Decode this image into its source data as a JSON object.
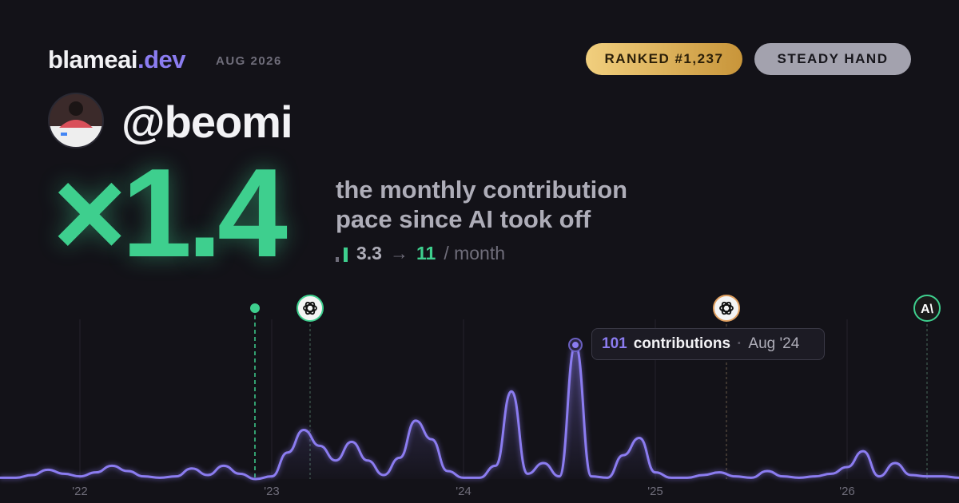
{
  "header": {
    "brand": "blameai",
    "brand_tld": ".dev",
    "period": "AUG 2026",
    "badges": [
      "RANKED #1,237",
      "STEADY HAND"
    ]
  },
  "profile": {
    "handle": "@beomi"
  },
  "hero": {
    "multiplier": "×1.4",
    "description_line1": "the monthly contribution",
    "description_line2": "pace since AI took off",
    "before": "3.3",
    "arrow": "→",
    "after": "11",
    "unit": "/ month"
  },
  "markers": {
    "anthropic_label": "A\\"
  },
  "chart_data": {
    "type": "line",
    "color": "#8b7cf0",
    "categories": [
      null,
      null,
      null,
      null,
      null,
      "'22",
      null,
      null,
      null,
      null,
      null,
      null,
      null,
      null,
      null,
      null,
      null,
      "'23",
      null,
      null,
      null,
      null,
      null,
      null,
      null,
      null,
      null,
      null,
      null,
      "'24",
      null,
      null,
      null,
      null,
      null,
      null,
      null,
      null,
      null,
      null,
      null,
      "'25",
      null,
      null,
      null,
      null,
      null,
      null,
      null,
      null,
      null,
      null,
      null,
      "'26",
      null,
      null,
      null,
      null,
      null,
      null,
      null
    ],
    "values": [
      1,
      1,
      3,
      7,
      4,
      2,
      5,
      10,
      6,
      2,
      1,
      2,
      8,
      3,
      10,
      4,
      0,
      2,
      20,
      37,
      25,
      14,
      28,
      14,
      3,
      16,
      44,
      30,
      6,
      1,
      1,
      10,
      66,
      4,
      12,
      2,
      101,
      2,
      1,
      18,
      31,
      5,
      1,
      1,
      3,
      5,
      2,
      1,
      6,
      2,
      1,
      2,
      4,
      9,
      21,
      2,
      12,
      3,
      2,
      2,
      1
    ],
    "tooltip": {
      "label": "contributions",
      "date": "Aug '24"
    }
  }
}
